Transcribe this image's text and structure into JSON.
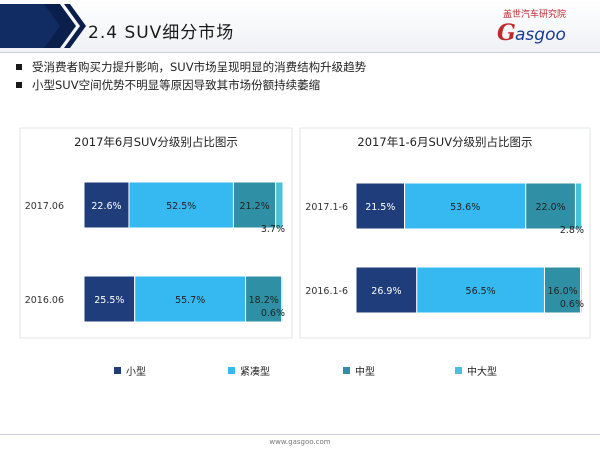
{
  "header": {
    "section_title": "2.4  SUV细分市场",
    "logo_cn": "盖世汽车研究院",
    "logo_text": "asgoo"
  },
  "bullets": [
    "受消费者购买力提升影响，SUV市场呈现明显的消费结构升级趋势",
    "小型SUV空间优势不明显等原因导致其市场份额持续萎缩"
  ],
  "footer": {
    "url": "www.gasgoo.com"
  },
  "colors": {
    "小型": "#1f3d7a",
    "紧凑型": "#36b9f1",
    "中型": "#2f8fa4",
    "中大型": "#4bc1d7"
  },
  "chart_data": [
    {
      "type": "bar",
      "orientation": "horizontal",
      "stacked": true,
      "title": "2017年6月SUV分级别占比图示",
      "categories": [
        "2017.06",
        "2016.06"
      ],
      "series": [
        {
          "name": "小型",
          "values": [
            22.6,
            25.5
          ]
        },
        {
          "name": "紧凑型",
          "values": [
            52.5,
            55.7
          ]
        },
        {
          "name": "中型",
          "values": [
            21.2,
            18.2
          ]
        },
        {
          "name": "中大型",
          "values": [
            3.7,
            0.6
          ]
        }
      ],
      "data_labels": [
        [
          "22.6%",
          "52.5%",
          "21.2%",
          "3.7%"
        ],
        [
          "25.5%",
          "55.7%",
          "18.2%",
          "0.6%"
        ]
      ],
      "xlim": [
        0,
        100
      ]
    },
    {
      "type": "bar",
      "orientation": "horizontal",
      "stacked": true,
      "title": "2017年1-6月SUV分级别占比图示",
      "categories": [
        "2017.1-6",
        "2016.1-6"
      ],
      "series": [
        {
          "name": "小型",
          "values": [
            21.5,
            26.9
          ]
        },
        {
          "name": "紧凑型",
          "values": [
            53.6,
            56.5
          ]
        },
        {
          "name": "中型",
          "values": [
            22.0,
            16.0
          ]
        },
        {
          "name": "中大型",
          "values": [
            2.8,
            0.6
          ]
        }
      ],
      "data_labels": [
        [
          "21.5%",
          "53.6%",
          "22.0%",
          "2.8%"
        ],
        [
          "26.9%",
          "56.5%",
          "16.0%",
          "0.6%"
        ]
      ],
      "xlim": [
        0,
        100
      ]
    }
  ],
  "legend": [
    "小型",
    "紧凑型",
    "中型",
    "中大型"
  ]
}
